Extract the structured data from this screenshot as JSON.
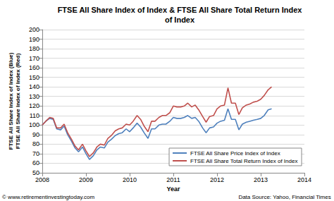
{
  "chart_data": {
    "type": "line",
    "title": "FTSE All Share Index of Index & FTSE All Share Total Return Index\nof Index",
    "xlabel": "Year",
    "ylabel": "FTSE All Share Index of Index (Blue)\nFTSE All Share Index of Index (Red)",
    "annotations": [
      "© www.retirementinvestingtoday.com",
      "Data Source: Yahoo, Financial Times"
    ],
    "x": [
      2008.0,
      2008.08,
      2008.17,
      2008.25,
      2008.33,
      2008.42,
      2008.5,
      2008.58,
      2008.67,
      2008.75,
      2008.83,
      2008.92,
      2009.0,
      2009.08,
      2009.17,
      2009.25,
      2009.33,
      2009.42,
      2009.5,
      2009.58,
      2009.67,
      2009.75,
      2009.83,
      2009.92,
      2010.0,
      2010.08,
      2010.17,
      2010.25,
      2010.33,
      2010.42,
      2010.5,
      2010.58,
      2010.67,
      2010.75,
      2010.83,
      2010.92,
      2011.0,
      2011.08,
      2011.17,
      2011.25,
      2011.33,
      2011.42,
      2011.5,
      2011.58,
      2011.67,
      2011.75,
      2011.83,
      2011.92,
      2012.0,
      2012.08,
      2012.17,
      2012.25,
      2012.33,
      2012.42,
      2012.5,
      2012.58,
      2012.67,
      2012.75,
      2012.83,
      2012.92,
      2013.0,
      2013.08,
      2013.17,
      2013.25
    ],
    "series": [
      {
        "name": "FTSE All Share Price Index of Index",
        "color": "#4F81BD",
        "values": [
          100,
          104,
          107,
          106,
          96,
          95,
          99,
          90,
          83,
          76,
          72,
          77,
          70,
          64,
          68,
          74,
          77,
          76,
          82,
          85,
          89,
          91,
          92,
          96,
          93,
          97,
          102,
          98,
          92,
          86,
          96,
          96,
          100,
          101,
          101,
          104,
          108,
          107,
          107,
          108,
          110,
          107,
          108,
          104,
          97,
          92,
          97,
          98,
          102,
          104,
          105,
          117,
          106,
          106,
          95,
          101,
          103,
          104,
          105,
          106,
          107,
          110,
          116,
          117
        ]
      },
      {
        "name": "FTSE All Share Total Return Index of Index",
        "color": "#C0504D",
        "values": [
          100,
          104,
          108,
          107,
          97,
          97,
          101,
          92,
          85,
          78,
          74,
          80,
          73,
          67,
          71,
          77,
          80,
          79,
          86,
          89,
          94,
          96,
          97,
          101,
          100,
          104,
          110,
          106,
          99,
          93,
          104,
          104,
          108,
          110,
          110,
          113,
          120,
          119,
          119,
          120,
          123,
          119,
          121,
          116,
          109,
          103,
          109,
          110,
          117,
          120,
          121,
          139,
          123,
          123,
          111,
          118,
          121,
          122,
          124,
          125,
          127,
          131,
          137,
          140
        ]
      }
    ],
    "xlim": [
      2008,
      2014
    ],
    "xticks": [
      2008,
      2009,
      2010,
      2011,
      2012,
      2013,
      2014
    ],
    "ylim": [
      50,
      200
    ],
    "yticks": [
      50,
      60,
      70,
      80,
      90,
      100,
      110,
      120,
      130,
      140,
      150,
      160,
      170,
      180,
      190,
      200
    ],
    "grid": true,
    "legend": "lower right"
  }
}
